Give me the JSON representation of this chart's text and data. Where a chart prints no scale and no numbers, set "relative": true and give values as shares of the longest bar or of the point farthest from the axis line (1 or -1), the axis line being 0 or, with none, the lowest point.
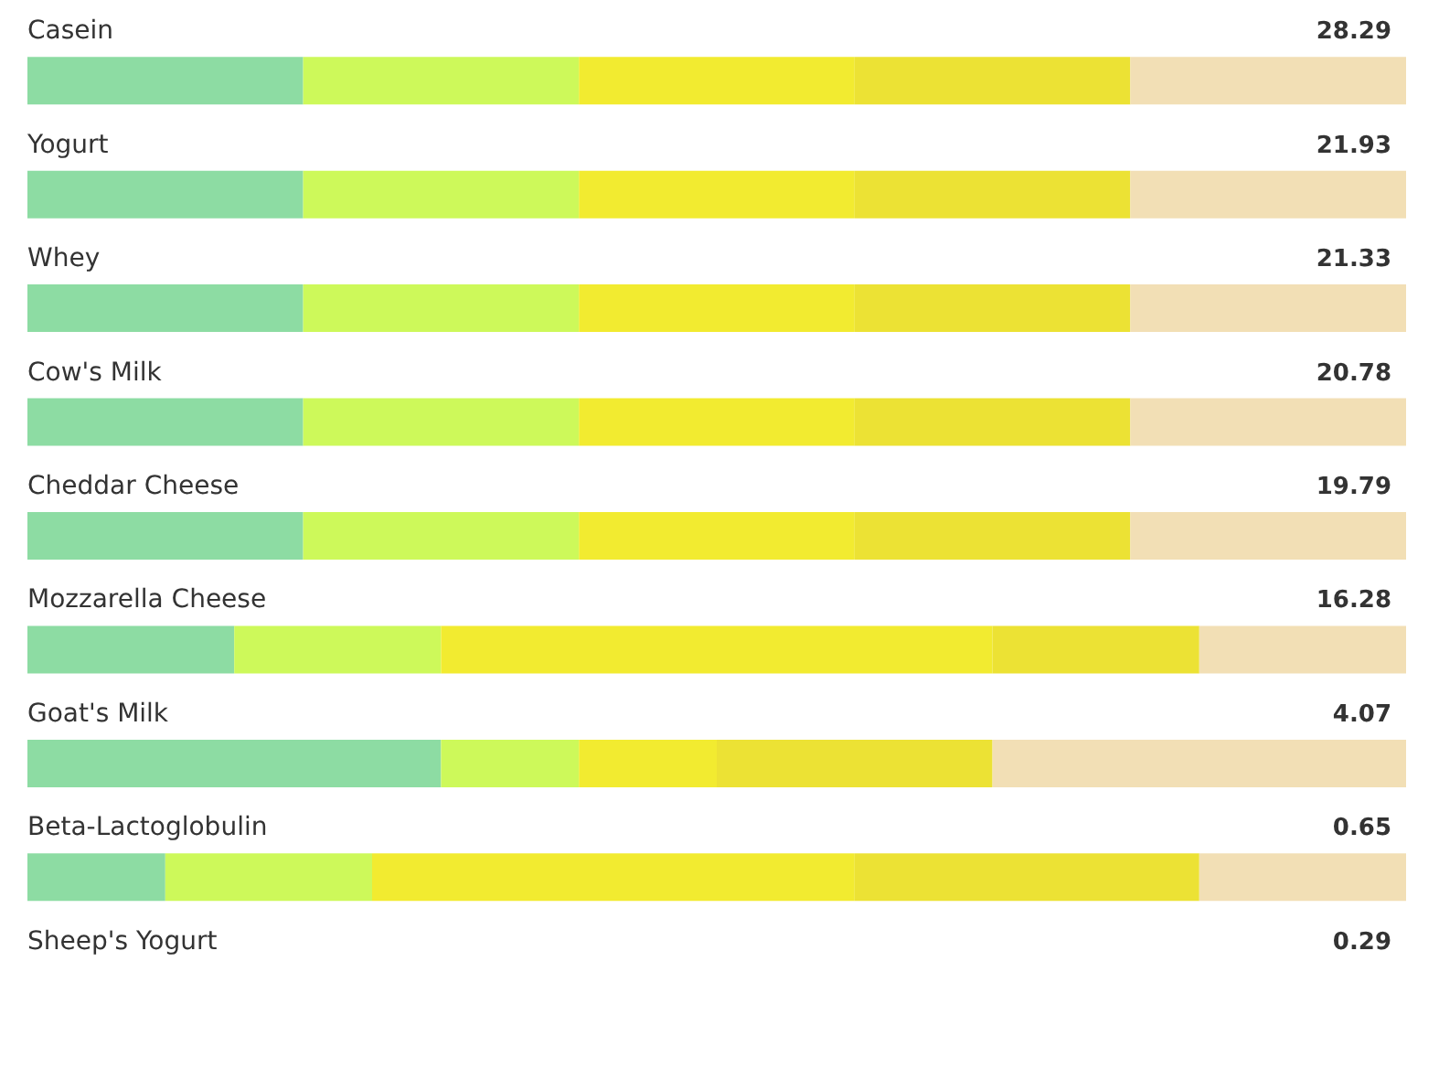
{
  "chart_data": {
    "type": "bar",
    "orientation": "horizontal",
    "stacked": true,
    "relative": true,
    "categories": [
      "Casein",
      "Yogurt",
      "Whey",
      "Cow's Milk",
      "Cheddar Cheese",
      "Mozzarella Cheese",
      "Goat's Milk",
      "Beta-Lactoglobulin",
      "Sheep's Yogurt"
    ],
    "series": [
      {
        "color": "#8ddca3",
        "values": [
          0.2,
          0.2,
          0.2,
          0.2,
          0.2,
          0.15,
          0.3,
          0.1,
          null
        ]
      },
      {
        "color": "#cdf95a",
        "values": [
          0.2,
          0.2,
          0.2,
          0.2,
          0.2,
          0.15,
          0.1,
          0.15,
          null
        ]
      },
      {
        "color": "#f2eb30",
        "values": [
          0.2,
          0.2,
          0.2,
          0.2,
          0.2,
          0.4,
          0.1,
          0.35,
          null
        ]
      },
      {
        "color": "#ece234",
        "values": [
          0.2,
          0.2,
          0.2,
          0.2,
          0.2,
          0.15,
          0.2,
          0.25,
          null
        ]
      },
      {
        "color": "#f2dfb5",
        "values": [
          0.2,
          0.2,
          0.2,
          0.2,
          0.2,
          0.15,
          0.3,
          0.15,
          null
        ]
      }
    ],
    "annotations": [
      "28.29",
      "21.93",
      "21.33",
      "20.78",
      "19.79",
      "16.28",
      "4.07",
      "0.65",
      "0.29"
    ],
    "legend": false
  }
}
